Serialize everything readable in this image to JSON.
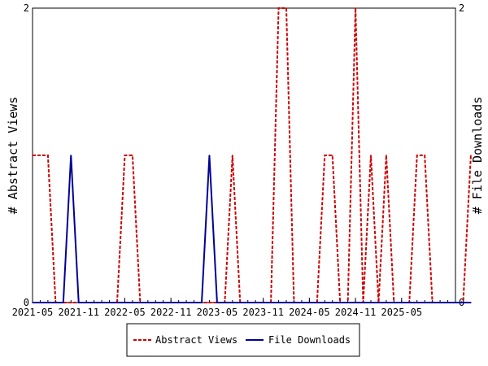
{
  "chart_data": {
    "type": "line",
    "x_tick_labels": [
      "2021-05",
      "2021-11",
      "2022-05",
      "2022-11",
      "2023-05",
      "2023-11",
      "2024-05",
      "2024-11",
      "2025-05"
    ],
    "x_start": "2021-05",
    "x_end": "2025-12",
    "ylabel_left": "# Abstract Views",
    "ylabel_right": "# File Downloads",
    "ylim_left": [
      0,
      2
    ],
    "ylim_right": [
      0,
      2
    ],
    "y_tick_labels_left": [
      "0",
      "2"
    ],
    "y_tick_labels_right": [
      "0",
      "2"
    ],
    "grid": false,
    "legend_position": "bottom-center",
    "series": [
      {
        "name": "Abstract Views",
        "color": "#cc0000",
        "style": "dashed",
        "axis": "left",
        "values": [
          1,
          1,
          1,
          0,
          0,
          0,
          0,
          0,
          0,
          0,
          0,
          0,
          1,
          1,
          0,
          0,
          0,
          0,
          0,
          0,
          0,
          0,
          0,
          0,
          0,
          0,
          1,
          0,
          0,
          0,
          0,
          0,
          2,
          2,
          0,
          0,
          0,
          0,
          1,
          1,
          0,
          0,
          2,
          0,
          1,
          0,
          1,
          0,
          0,
          0,
          1,
          1,
          0,
          0,
          0,
          0,
          0,
          1
        ]
      },
      {
        "name": "File Downloads",
        "color": "#000099",
        "style": "solid",
        "axis": "right",
        "values": [
          0,
          0,
          0,
          0,
          0,
          1,
          0,
          0,
          0,
          0,
          0,
          0,
          0,
          0,
          0,
          0,
          0,
          0,
          0,
          0,
          0,
          0,
          0,
          1,
          0,
          0,
          0,
          0,
          0,
          0,
          0,
          0,
          0,
          0,
          0,
          0,
          0,
          0,
          0,
          0,
          0,
          0,
          0,
          0,
          0,
          0,
          0,
          0,
          0,
          0,
          0,
          0,
          0,
          0,
          0,
          0,
          0,
          0
        ]
      }
    ]
  }
}
